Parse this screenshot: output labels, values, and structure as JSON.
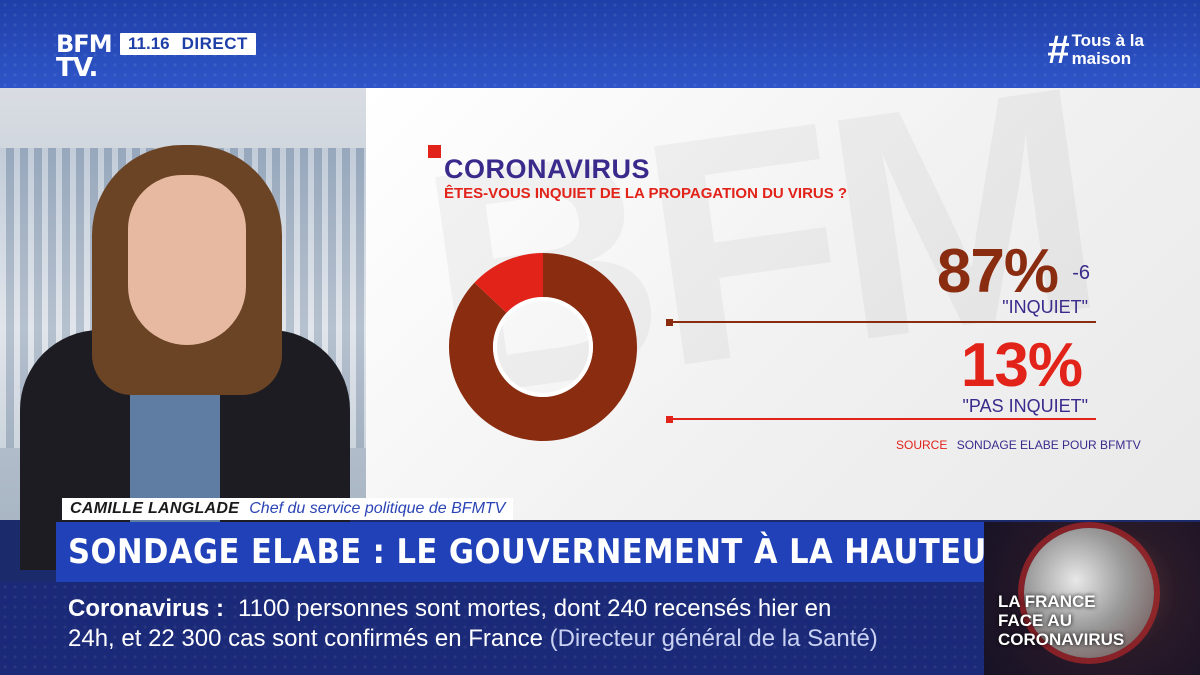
{
  "broadcast": {
    "channel_logo_line1": "BFM",
    "channel_logo_line2": "TV.",
    "time": "11.16",
    "live_label": "DIRECT",
    "hashtag_symbol": "#",
    "hashtag_line1": "Tous à la",
    "hashtag_line2": "maison"
  },
  "infographic": {
    "title": "CORONAVIRUS",
    "subtitle": "ÊTES-VOUS INQUIET DE LA PROPAGATION DU VIRUS ?",
    "source_label": "SOURCE",
    "source_text": "SONDAGE ELABE POUR BFMTV",
    "watermark": "BFM",
    "colors": {
      "inquiet": "#8a2c10",
      "pas_inquiet": "#e2231a",
      "title": "#3a2a8c"
    }
  },
  "chart_data": {
    "type": "pie",
    "title": "CORONAVIRUS",
    "subtitle": "ÊTES-VOUS INQUIET DE LA PROPAGATION DU VIRUS ?",
    "slices": [
      {
        "label": "\"INQUIET\"",
        "value": 87,
        "value_label": "87%",
        "change": "-6",
        "color": "#8a2c10"
      },
      {
        "label": "\"PAS INQUIET\"",
        "value": 13,
        "value_label": "13%",
        "color": "#e2231a"
      }
    ],
    "donut": true
  },
  "lower_third": {
    "name": "CAMILLE LANGLADE",
    "role": "Chef du service politique de BFMTV",
    "headline": "SONDAGE ELABE : LE GOUVERNEMENT À LA HAUTEUR ?"
  },
  "ticker": {
    "topic": "Coronavirus :",
    "line1_text": "1100 personnes sont mortes, dont 240 recensés hier en",
    "line2_text": "24h, et 22 300 cas sont confirmés en France",
    "attribution": "(Directeur général de la Santé)"
  },
  "promo": {
    "line1": "LA FRANCE",
    "line2": "FACE AU",
    "line3": "CORONAVIRUS"
  }
}
